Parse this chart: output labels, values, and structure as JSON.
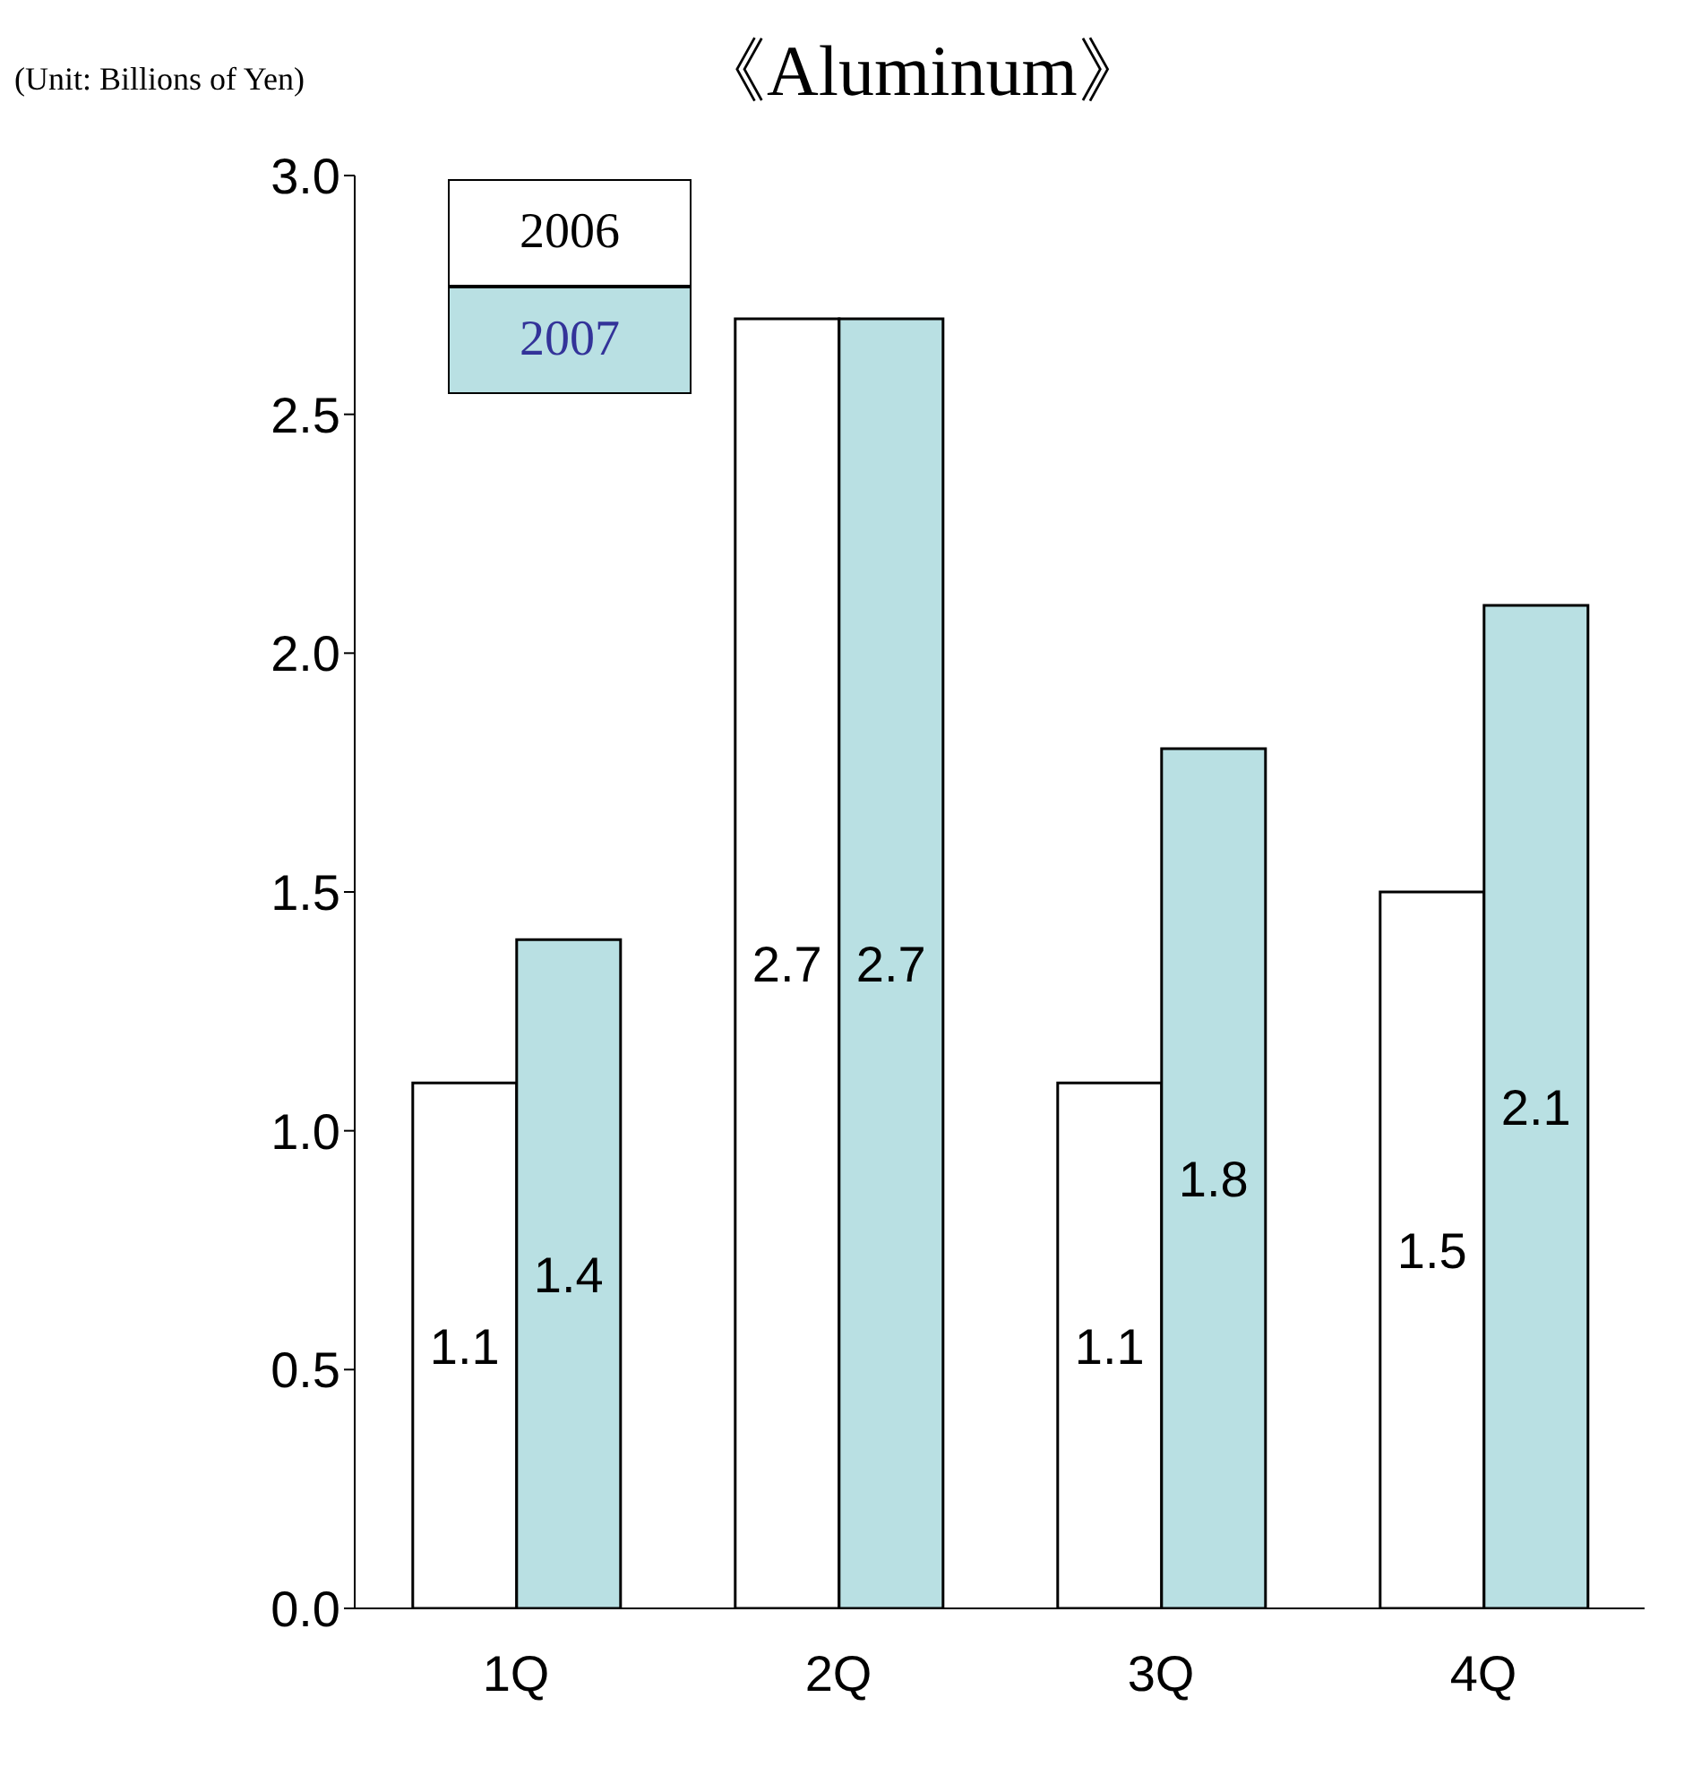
{
  "chart_data": {
    "type": "bar",
    "title": "《Aluminum》",
    "annotations": [
      "(Unit: Billions of Yen)"
    ],
    "categories": [
      "1Q",
      "2Q",
      "3Q",
      "4Q"
    ],
    "series": [
      {
        "name": "2006",
        "color": "#ffffff",
        "values": [
          1.1,
          2.7,
          1.1,
          1.5
        ]
      },
      {
        "name": "2007",
        "color": "#b9e0e3",
        "values": [
          1.4,
          2.7,
          1.8,
          2.1
        ]
      }
    ],
    "ylim": [
      0,
      3
    ],
    "yticks": [
      {
        "value": 0,
        "label": "0.0"
      },
      {
        "value": 0.5,
        "label": "0.5"
      },
      {
        "value": 1,
        "label": "1.0"
      },
      {
        "value": 1.5,
        "label": "1.5"
      },
      {
        "value": 2,
        "label": "2.0"
      },
      {
        "value": 2.5,
        "label": "2.5"
      },
      {
        "value": 3,
        "label": "3.0"
      }
    ],
    "data_labels": true,
    "grid": false,
    "legend": "top left"
  }
}
